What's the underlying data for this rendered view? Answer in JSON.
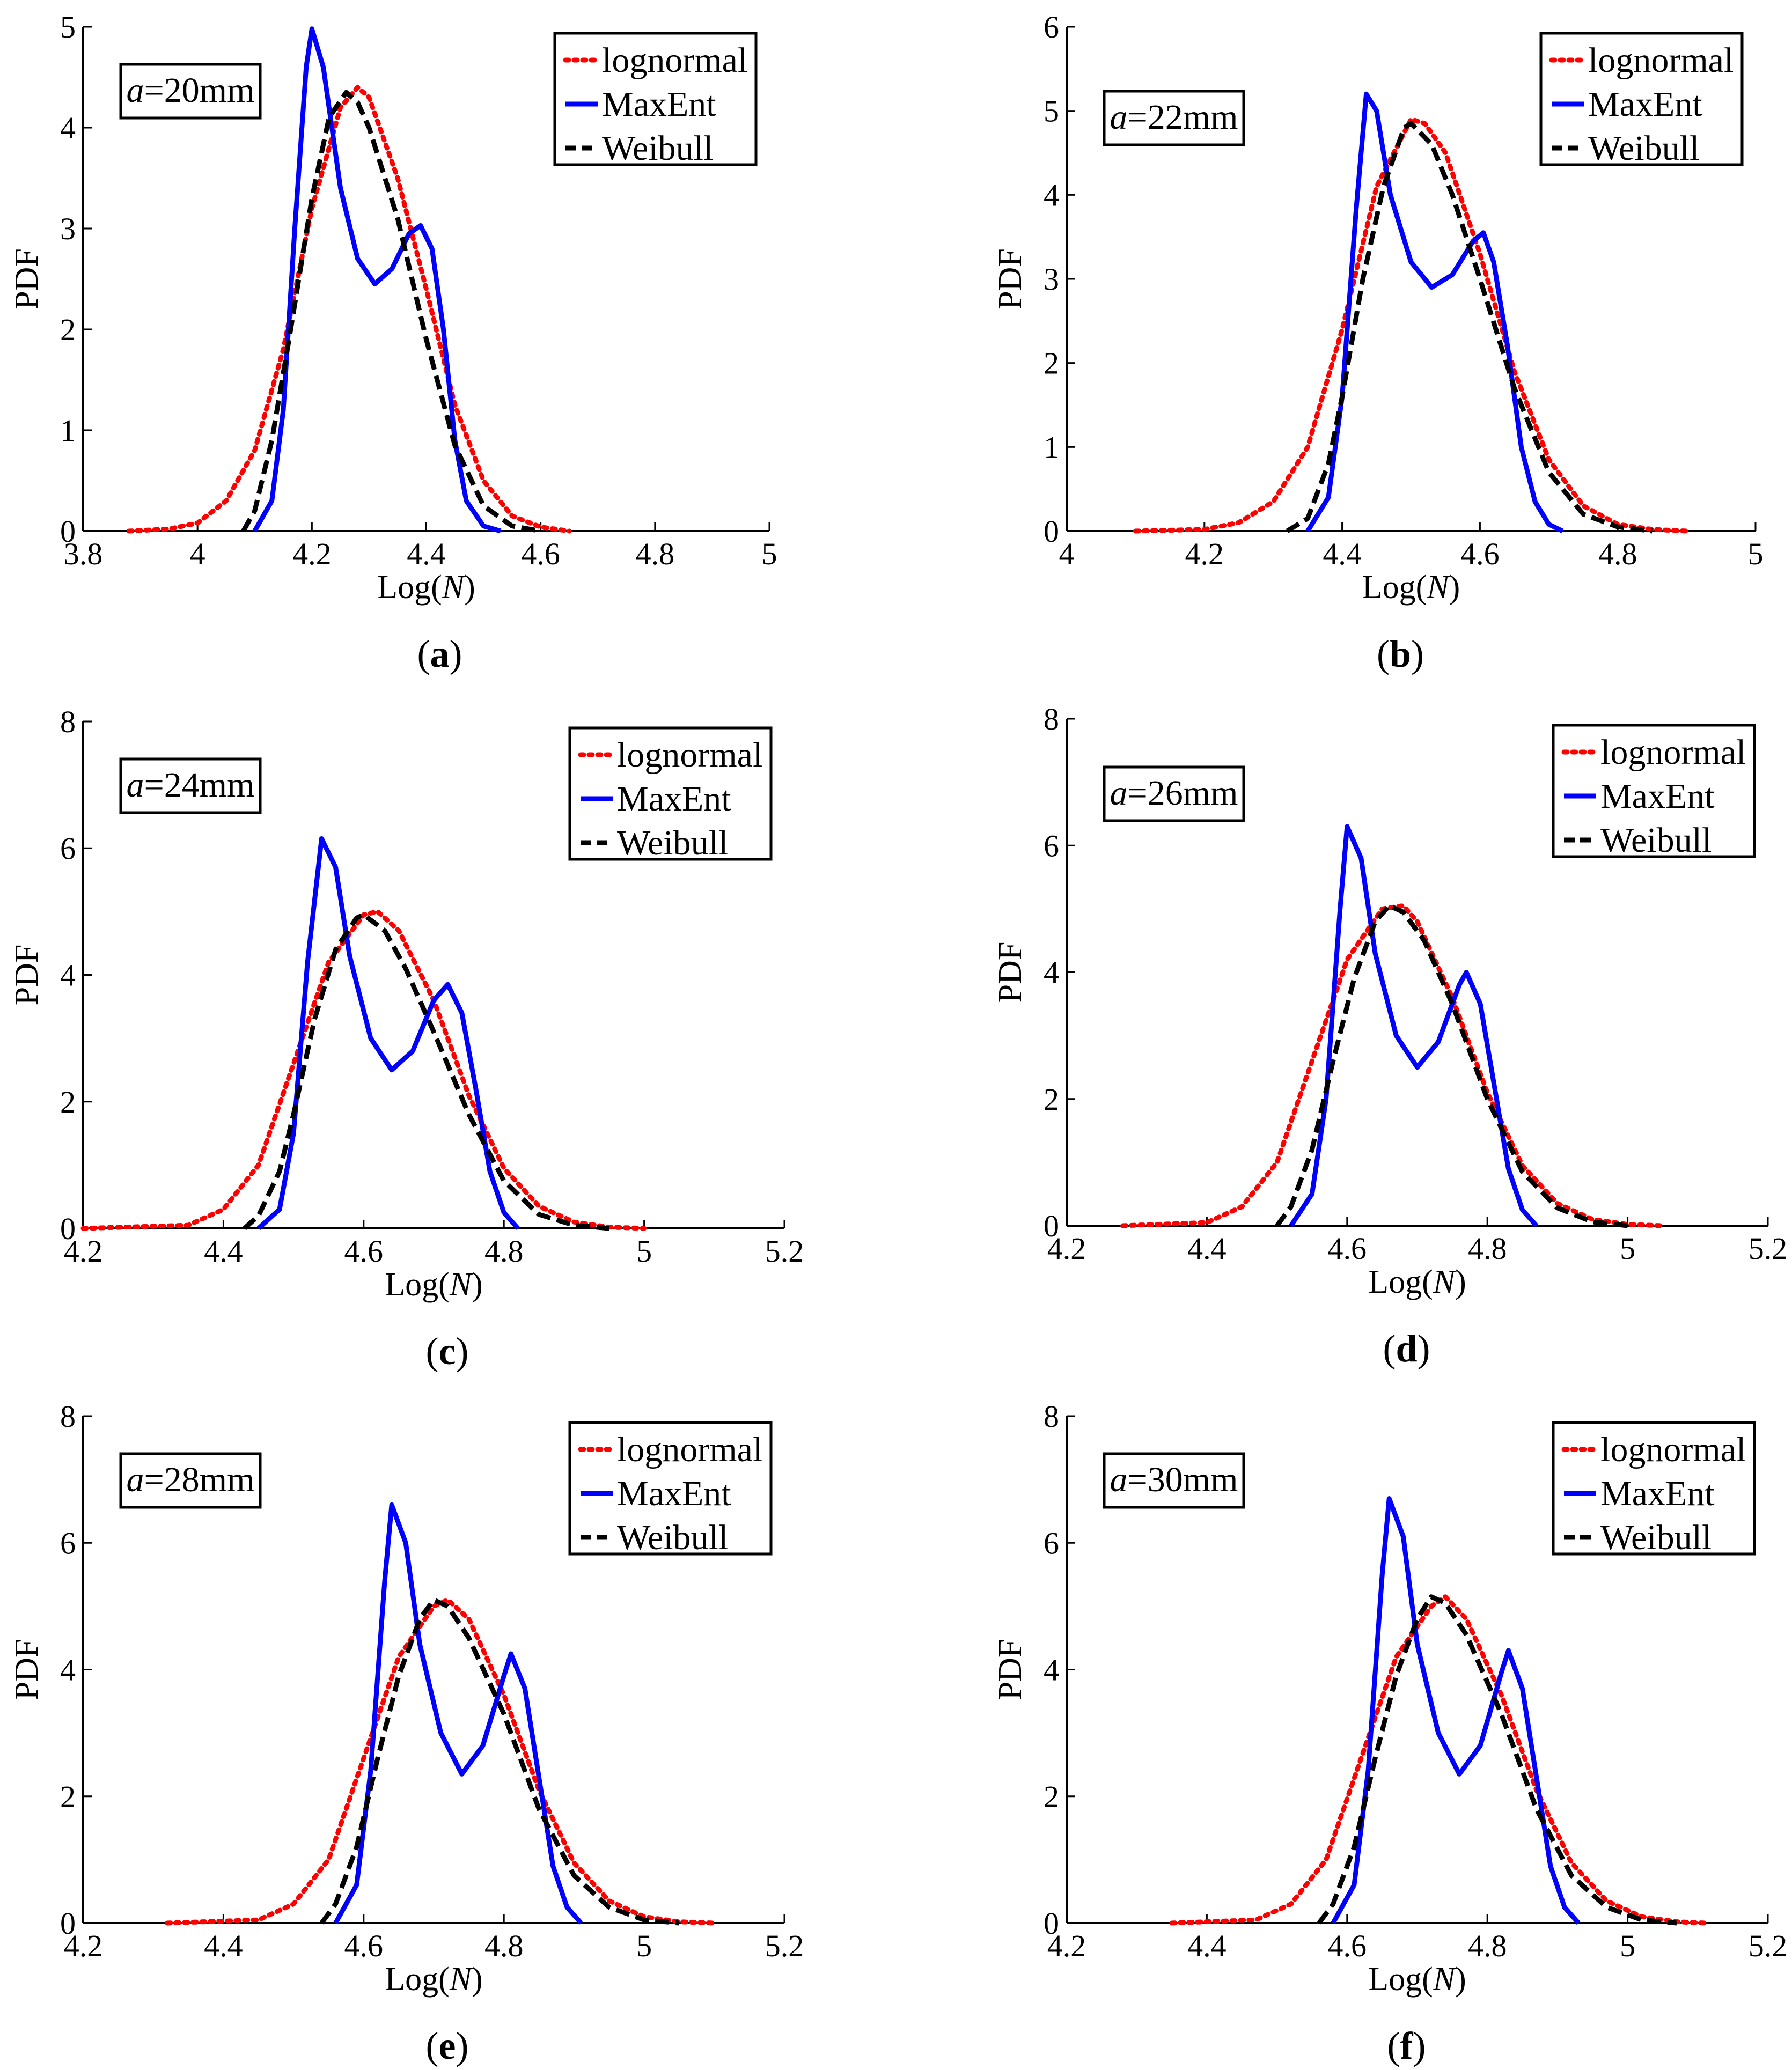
{
  "figure": {
    "colors": {
      "lognormal": "#ff0000",
      "maxent": "#0000ff",
      "weibull": "#000000"
    },
    "legend_placement": "top-right",
    "annotation_placement": "top-left"
  },
  "chart_data": [
    {
      "type": "line",
      "panel": "a",
      "caption": {
        "open": "(",
        "letter": "a",
        "close": ")"
      },
      "annotation": {
        "var": "a",
        "text": "=20mm"
      },
      "xlabel": {
        "text": "Log(",
        "var": "N",
        "close": ")"
      },
      "ylabel": "PDF",
      "xlim": [
        3.8,
        5.0
      ],
      "ylim": [
        0,
        5
      ],
      "xticks": [
        "3.8",
        "4",
        "4.2",
        "4.4",
        "4.6",
        "4.8",
        "5"
      ],
      "yticks": [
        "0",
        "1",
        "2",
        "3",
        "4",
        "5"
      ],
      "series": [
        {
          "name": "lognormal",
          "style": "dotted",
          "x": [
            3.88,
            3.95,
            4.0,
            4.05,
            4.1,
            4.15,
            4.2,
            4.25,
            4.28,
            4.3,
            4.35,
            4.4,
            4.45,
            4.5,
            4.55,
            4.6,
            4.65
          ],
          "values": [
            0.0,
            0.02,
            0.08,
            0.3,
            0.8,
            1.8,
            3.2,
            4.2,
            4.4,
            4.3,
            3.5,
            2.4,
            1.25,
            0.5,
            0.15,
            0.04,
            0.0
          ]
        },
        {
          "name": "MaxEnt",
          "style": "solid",
          "x": [
            4.1,
            4.13,
            4.15,
            4.17,
            4.19,
            4.2,
            4.22,
            4.25,
            4.28,
            4.31,
            4.34,
            4.37,
            4.39,
            4.41,
            4.43,
            4.45,
            4.47,
            4.5,
            4.53
          ],
          "values": [
            0.0,
            0.3,
            1.2,
            3.0,
            4.6,
            4.98,
            4.6,
            3.4,
            2.7,
            2.45,
            2.6,
            2.95,
            3.03,
            2.8,
            2.0,
            0.9,
            0.3,
            0.05,
            0.0
          ]
        },
        {
          "name": "Weibull",
          "style": "dashed",
          "x": [
            4.08,
            4.1,
            4.13,
            4.16,
            4.2,
            4.23,
            4.26,
            4.28,
            4.3,
            4.35,
            4.4,
            4.45,
            4.5,
            4.55,
            4.6
          ],
          "values": [
            0.0,
            0.2,
            0.9,
            1.9,
            3.3,
            4.1,
            4.35,
            4.25,
            4.0,
            3.1,
            1.9,
            0.85,
            0.25,
            0.05,
            0.0
          ]
        }
      ]
    },
    {
      "type": "line",
      "panel": "b",
      "caption": {
        "open": "(",
        "letter": "b",
        "close": ")"
      },
      "annotation": {
        "var": "a",
        "text": "=22mm"
      },
      "xlabel": {
        "text": "Log(",
        "var": "N",
        "close": ")"
      },
      "ylabel": "PDF",
      "xlim": [
        4.0,
        5.0
      ],
      "ylim": [
        0,
        6
      ],
      "xticks": [
        "4",
        "4.2",
        "4.4",
        "4.6",
        "4.8",
        "5"
      ],
      "yticks": [
        "0",
        "1",
        "2",
        "3",
        "4",
        "5",
        "6"
      ],
      "series": [
        {
          "name": "lognormal",
          "style": "dotted",
          "x": [
            4.1,
            4.2,
            4.25,
            4.3,
            4.35,
            4.4,
            4.45,
            4.5,
            4.52,
            4.55,
            4.6,
            4.65,
            4.7,
            4.75,
            4.8,
            4.85,
            4.9
          ],
          "values": [
            0.0,
            0.02,
            0.1,
            0.35,
            1.0,
            2.4,
            4.1,
            4.9,
            4.85,
            4.5,
            3.3,
            1.9,
            0.85,
            0.3,
            0.08,
            0.02,
            0.0
          ]
        },
        {
          "name": "MaxEnt",
          "style": "solid",
          "x": [
            4.35,
            4.38,
            4.4,
            4.42,
            4.435,
            4.45,
            4.47,
            4.5,
            4.53,
            4.56,
            4.59,
            4.605,
            4.62,
            4.64,
            4.66,
            4.68,
            4.7,
            4.72
          ],
          "values": [
            0.0,
            0.4,
            1.6,
            3.8,
            5.2,
            5.0,
            4.0,
            3.2,
            2.9,
            3.05,
            3.45,
            3.55,
            3.2,
            2.2,
            1.0,
            0.35,
            0.08,
            0.0
          ]
        },
        {
          "name": "Weibull",
          "style": "dashed",
          "x": [
            4.32,
            4.35,
            4.38,
            4.4,
            4.43,
            4.46,
            4.49,
            4.5,
            4.53,
            4.56,
            4.6,
            4.65,
            4.7,
            4.75,
            4.8,
            4.85
          ],
          "values": [
            0.0,
            0.15,
            0.8,
            1.6,
            3.0,
            4.1,
            4.8,
            4.85,
            4.6,
            4.0,
            3.0,
            1.7,
            0.7,
            0.2,
            0.05,
            0.0
          ]
        }
      ]
    },
    {
      "type": "line",
      "panel": "c",
      "caption": {
        "open": "(",
        "letter": "c",
        "close": ")"
      },
      "annotation": {
        "var": "a",
        "text": "=24mm"
      },
      "xlabel": {
        "text": "Log(",
        "var": "N",
        "close": ")"
      },
      "ylabel": "PDF",
      "xlim": [
        4.2,
        5.2
      ],
      "ylim": [
        0,
        8
      ],
      "xticks": [
        "4.2",
        "4.4",
        "4.6",
        "4.8",
        "5",
        "5.2"
      ],
      "yticks": [
        "0",
        "2",
        "4",
        "6",
        "8"
      ],
      "series": [
        {
          "name": "lognormal",
          "style": "dotted",
          "x": [
            4.2,
            4.35,
            4.4,
            4.45,
            4.5,
            4.55,
            4.6,
            4.62,
            4.65,
            4.7,
            4.75,
            4.8,
            4.85,
            4.9,
            4.95,
            5.0
          ],
          "values": [
            0.0,
            0.05,
            0.3,
            1.0,
            2.6,
            4.2,
            4.95,
            5.0,
            4.7,
            3.6,
            2.1,
            0.95,
            0.35,
            0.1,
            0.02,
            0.0
          ]
        },
        {
          "name": "MaxEnt",
          "style": "solid",
          "x": [
            4.45,
            4.48,
            4.5,
            4.52,
            4.54,
            4.56,
            4.58,
            4.61,
            4.64,
            4.67,
            4.7,
            4.72,
            4.74,
            4.76,
            4.78,
            4.8,
            4.82
          ],
          "values": [
            0.0,
            0.3,
            1.5,
            4.2,
            6.15,
            5.7,
            4.3,
            3.0,
            2.5,
            2.8,
            3.6,
            3.85,
            3.4,
            2.2,
            0.9,
            0.25,
            0.0
          ]
        },
        {
          "name": "Weibull",
          "style": "dashed",
          "x": [
            4.43,
            4.45,
            4.48,
            4.5,
            4.53,
            4.56,
            4.59,
            4.6,
            4.63,
            4.66,
            4.7,
            4.75,
            4.8,
            4.85,
            4.9,
            4.95
          ],
          "values": [
            0.0,
            0.2,
            0.9,
            1.8,
            3.3,
            4.4,
            4.9,
            4.95,
            4.7,
            4.1,
            3.1,
            1.8,
            0.75,
            0.22,
            0.05,
            0.0
          ]
        }
      ]
    },
    {
      "type": "line",
      "panel": "d",
      "caption": {
        "open": "(",
        "letter": "d",
        "close": ")"
      },
      "annotation": {
        "var": "a",
        "text": "=26mm"
      },
      "xlabel": {
        "text": "Log(",
        "var": "N",
        "close": ")"
      },
      "ylabel": "PDF",
      "xlim": [
        4.2,
        5.2
      ],
      "ylim": [
        0,
        8
      ],
      "xticks": [
        "4.2",
        "4.4",
        "4.6",
        "4.8",
        "5",
        "5.2"
      ],
      "yticks": [
        "0",
        "2",
        "4",
        "6",
        "8"
      ],
      "series": [
        {
          "name": "lognormal",
          "style": "dotted",
          "x": [
            4.28,
            4.4,
            4.45,
            4.5,
            4.55,
            4.6,
            4.65,
            4.68,
            4.7,
            4.75,
            4.8,
            4.85,
            4.9,
            4.95,
            5.0,
            5.05
          ],
          "values": [
            0.0,
            0.05,
            0.3,
            1.0,
            2.6,
            4.2,
            5.0,
            5.05,
            4.8,
            3.6,
            2.1,
            0.95,
            0.35,
            0.1,
            0.02,
            0.0
          ]
        },
        {
          "name": "MaxEnt",
          "style": "solid",
          "x": [
            4.52,
            4.55,
            4.57,
            4.59,
            4.6,
            4.62,
            4.64,
            4.67,
            4.7,
            4.73,
            4.76,
            4.77,
            4.79,
            4.81,
            4.83,
            4.85,
            4.87
          ],
          "values": [
            0.0,
            0.5,
            2.0,
            5.0,
            6.3,
            5.8,
            4.3,
            3.0,
            2.5,
            2.9,
            3.8,
            4.0,
            3.5,
            2.2,
            0.9,
            0.25,
            0.0
          ]
        },
        {
          "name": "Weibull",
          "style": "dashed",
          "x": [
            4.5,
            4.52,
            4.55,
            4.58,
            4.61,
            4.64,
            4.66,
            4.68,
            4.71,
            4.75,
            4.8,
            4.85,
            4.9,
            4.95,
            5.0
          ],
          "values": [
            0.0,
            0.3,
            1.2,
            2.6,
            3.9,
            4.8,
            5.05,
            4.95,
            4.5,
            3.5,
            2.0,
            0.85,
            0.28,
            0.06,
            0.0
          ]
        }
      ]
    },
    {
      "type": "line",
      "panel": "e",
      "caption": {
        "open": "(",
        "letter": "e",
        "close": ")"
      },
      "annotation": {
        "var": "a",
        "text": "=28mm"
      },
      "xlabel": {
        "text": "Log(",
        "var": "N",
        "close": ")"
      },
      "ylabel": "PDF",
      "xlim": [
        4.2,
        5.2
      ],
      "ylim": [
        0,
        8
      ],
      "xticks": [
        "4.2",
        "4.4",
        "4.6",
        "4.8",
        "5",
        "5.2"
      ],
      "yticks": [
        "0",
        "2",
        "4",
        "6",
        "8"
      ],
      "series": [
        {
          "name": "lognormal",
          "style": "dotted",
          "x": [
            4.32,
            4.45,
            4.5,
            4.55,
            4.6,
            4.65,
            4.7,
            4.72,
            4.75,
            4.8,
            4.85,
            4.9,
            4.95,
            5.0,
            5.05,
            5.1
          ],
          "values": [
            0.0,
            0.05,
            0.3,
            1.0,
            2.6,
            4.2,
            5.0,
            5.1,
            4.8,
            3.6,
            2.1,
            0.95,
            0.35,
            0.1,
            0.02,
            0.0
          ]
        },
        {
          "name": "MaxEnt",
          "style": "solid",
          "x": [
            4.56,
            4.59,
            4.61,
            4.63,
            4.64,
            4.66,
            4.68,
            4.71,
            4.74,
            4.77,
            4.8,
            4.81,
            4.83,
            4.85,
            4.87,
            4.89,
            4.91
          ],
          "values": [
            0.0,
            0.6,
            2.4,
            5.4,
            6.6,
            6.0,
            4.4,
            3.0,
            2.35,
            2.8,
            3.9,
            4.25,
            3.7,
            2.3,
            0.9,
            0.25,
            0.0
          ]
        },
        {
          "name": "Weibull",
          "style": "dashed",
          "x": [
            4.54,
            4.56,
            4.59,
            4.62,
            4.65,
            4.68,
            4.7,
            4.72,
            4.75,
            4.8,
            4.85,
            4.9,
            4.95,
            5.0,
            5.05
          ],
          "values": [
            0.0,
            0.3,
            1.2,
            2.6,
            3.9,
            4.8,
            5.1,
            5.0,
            4.5,
            3.3,
            1.8,
            0.75,
            0.25,
            0.05,
            0.0
          ]
        }
      ]
    },
    {
      "type": "line",
      "panel": "f",
      "caption": {
        "open": "(",
        "letter": "f",
        "close": ")"
      },
      "annotation": {
        "var": "a",
        "text": "=30mm"
      },
      "xlabel": {
        "text": "Log(",
        "var": "N",
        "close": ")"
      },
      "ylabel": "PDF",
      "xlim": [
        4.2,
        5.2
      ],
      "ylim": [
        0,
        8
      ],
      "xticks": [
        "4.2",
        "4.4",
        "4.6",
        "4.8",
        "5",
        "5.2"
      ],
      "yticks": [
        "0",
        "2",
        "4",
        "6",
        "8"
      ],
      "series": [
        {
          "name": "lognormal",
          "style": "dotted",
          "x": [
            4.35,
            4.47,
            4.52,
            4.57,
            4.62,
            4.67,
            4.72,
            4.74,
            4.77,
            4.82,
            4.87,
            4.92,
            4.97,
            5.02,
            5.07,
            5.11
          ],
          "values": [
            0.0,
            0.05,
            0.3,
            1.0,
            2.6,
            4.2,
            5.0,
            5.15,
            4.8,
            3.6,
            2.1,
            0.95,
            0.35,
            0.1,
            0.02,
            0.0
          ]
        },
        {
          "name": "MaxEnt",
          "style": "solid",
          "x": [
            4.58,
            4.61,
            4.63,
            4.65,
            4.66,
            4.68,
            4.7,
            4.73,
            4.76,
            4.79,
            4.82,
            4.83,
            4.85,
            4.87,
            4.89,
            4.91,
            4.93
          ],
          "values": [
            0.0,
            0.6,
            2.4,
            5.5,
            6.7,
            6.1,
            4.4,
            3.0,
            2.35,
            2.8,
            3.95,
            4.3,
            3.7,
            2.3,
            0.9,
            0.25,
            0.0
          ]
        },
        {
          "name": "Weibull",
          "style": "dashed",
          "x": [
            4.56,
            4.58,
            4.61,
            4.64,
            4.67,
            4.7,
            4.72,
            4.74,
            4.77,
            4.82,
            4.87,
            4.92,
            4.97,
            5.02,
            5.07
          ],
          "values": [
            0.0,
            0.3,
            1.2,
            2.6,
            3.9,
            4.8,
            5.15,
            5.05,
            4.55,
            3.3,
            1.8,
            0.75,
            0.25,
            0.05,
            0.0
          ]
        }
      ]
    }
  ]
}
